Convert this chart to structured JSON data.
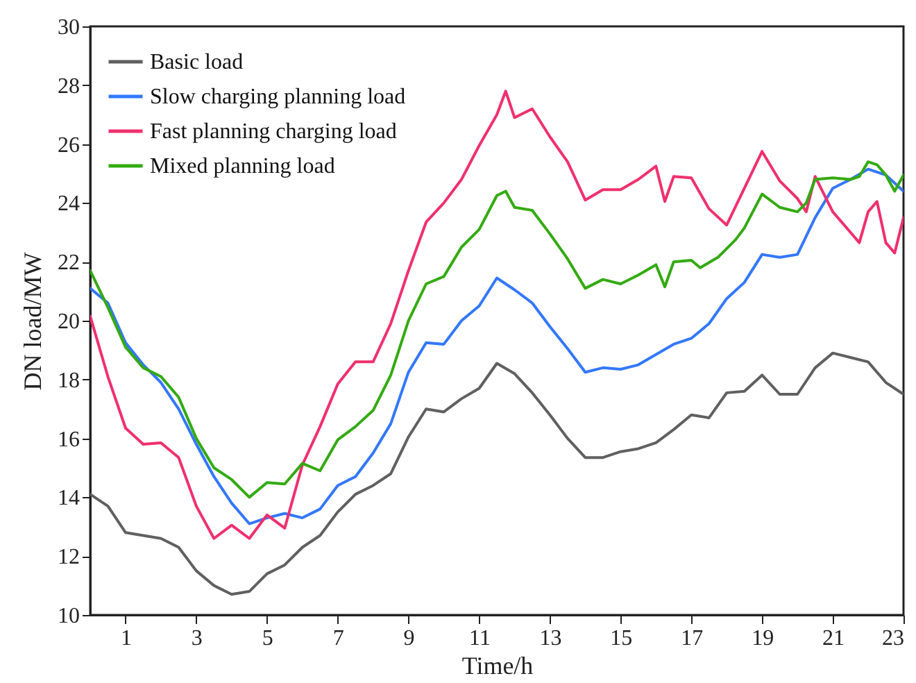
{
  "chart_data": {
    "type": "line",
    "xlabel": "Time/h",
    "ylabel": "DN load/MW",
    "xlim": [
      0,
      23
    ],
    "xticks": [
      1,
      3,
      5,
      7,
      9,
      11,
      13,
      15,
      17,
      19,
      21,
      23
    ],
    "ylim": [
      10,
      30
    ],
    "yticks": [
      10,
      12,
      14,
      16,
      18,
      20,
      22,
      24,
      26,
      28,
      30
    ],
    "grid": false,
    "legend": "top left",
    "marker": "none",
    "line_style": "solid",
    "series": [
      {
        "name": "Basic load",
        "color": "#606060",
        "x": [
          0,
          0.5,
          1,
          1.5,
          2,
          2.5,
          3,
          3.5,
          4,
          4.5,
          5,
          5.5,
          6,
          6.5,
          7,
          7.5,
          8,
          8.5,
          9,
          9.5,
          10,
          10.5,
          11,
          11.5,
          12,
          12.5,
          13,
          13.5,
          14,
          14.5,
          15,
          15.5,
          16,
          16.5,
          17,
          17.5,
          18,
          18.5,
          19,
          19.5,
          20,
          20.5,
          21,
          21.5,
          22,
          22.5,
          23
        ],
        "values": [
          14.1,
          13.7,
          12.8,
          12.7,
          12.6,
          12.3,
          11.5,
          11.0,
          10.7,
          10.8,
          11.4,
          11.7,
          12.3,
          12.7,
          13.5,
          14.1,
          14.4,
          14.8,
          16.05,
          17.0,
          16.9,
          17.35,
          17.7,
          18.55,
          18.2,
          17.55,
          16.8,
          16.0,
          15.35,
          15.35,
          15.55,
          15.65,
          15.85,
          16.3,
          16.8,
          16.7,
          17.55,
          17.6,
          18.15,
          17.5,
          17.5,
          18.4,
          18.9,
          18.75,
          18.6,
          17.9,
          17.5
        ]
      },
      {
        "name": "Slow charging planning load",
        "color": "#3377ff",
        "x": [
          0,
          0.5,
          1,
          1.5,
          2,
          2.5,
          3,
          3.5,
          4,
          4.5,
          5,
          5.5,
          6,
          6.5,
          7,
          7.5,
          8,
          8.5,
          9,
          9.5,
          10,
          10.5,
          11,
          11.5,
          12,
          12.5,
          13,
          13.5,
          14,
          14.5,
          15,
          15.5,
          16,
          16.5,
          17,
          17.5,
          18,
          18.5,
          19,
          19.5,
          20,
          20.5,
          21,
          21.5,
          22,
          22.5,
          23
        ],
        "values": [
          21.1,
          20.6,
          19.25,
          18.5,
          17.9,
          17.0,
          15.8,
          14.7,
          13.8,
          13.1,
          13.3,
          13.45,
          13.3,
          13.6,
          14.4,
          14.7,
          15.5,
          16.5,
          18.25,
          19.25,
          19.2,
          20.0,
          20.5,
          21.45,
          21.05,
          20.6,
          19.8,
          19.05,
          18.25,
          18.4,
          18.35,
          18.5,
          18.85,
          19.2,
          19.4,
          19.9,
          20.75,
          21.3,
          22.25,
          22.15,
          22.25,
          23.5,
          24.5,
          24.8,
          25.15,
          24.95,
          24.4
        ]
      },
      {
        "name": "Fast planning charging load",
        "color": "#f0306e",
        "x": [
          0,
          0.5,
          1,
          1.5,
          2,
          2.5,
          3,
          3.5,
          4,
          4.5,
          5,
          5.5,
          6,
          6.5,
          7,
          7.5,
          8,
          8.5,
          9,
          9.5,
          10,
          10.5,
          11,
          11.5,
          11.75,
          12,
          12.5,
          13,
          13.5,
          14,
          14.5,
          15,
          15.5,
          16,
          16.25,
          16.5,
          17,
          17.5,
          18,
          18.5,
          19,
          19.5,
          20,
          20.25,
          20.5,
          21,
          21.5,
          21.75,
          22,
          22.25,
          22.5,
          22.75,
          23
        ],
        "values": [
          20.15,
          18.1,
          16.35,
          15.8,
          15.85,
          15.35,
          13.7,
          12.6,
          13.05,
          12.6,
          13.4,
          12.95,
          15.1,
          16.4,
          17.85,
          18.6,
          18.6,
          19.9,
          21.7,
          23.35,
          24.0,
          24.8,
          25.95,
          27.0,
          27.8,
          26.9,
          27.2,
          26.25,
          25.4,
          24.1,
          24.45,
          24.45,
          24.8,
          25.25,
          24.05,
          24.9,
          24.85,
          23.8,
          23.25,
          24.5,
          25.75,
          24.75,
          24.15,
          23.7,
          24.9,
          23.7,
          23.0,
          22.65,
          23.7,
          24.05,
          22.65,
          22.3,
          23.5
        ]
      },
      {
        "name": "Mixed planning load",
        "color": "#33aa11",
        "x": [
          0,
          0.5,
          1,
          1.5,
          2,
          2.5,
          3,
          3.5,
          4,
          4.5,
          5,
          5.5,
          6,
          6.5,
          7,
          7.5,
          8,
          8.5,
          9,
          9.5,
          10,
          10.5,
          11,
          11.5,
          11.75,
          12,
          12.5,
          13,
          13.5,
          14,
          14.5,
          15,
          15.5,
          16,
          16.25,
          16.5,
          17,
          17.25,
          17.75,
          18.25,
          18.5,
          19,
          19.5,
          20,
          20.25,
          20.5,
          21,
          21.5,
          21.75,
          22,
          22.25,
          22.5,
          22.75,
          23
        ],
        "values": [
          21.7,
          20.45,
          19.1,
          18.4,
          18.1,
          17.4,
          16.0,
          15.0,
          14.6,
          14.0,
          14.5,
          14.45,
          15.15,
          14.9,
          15.95,
          16.4,
          16.95,
          18.15,
          20.0,
          21.25,
          21.5,
          22.5,
          23.1,
          24.25,
          24.4,
          23.85,
          23.75,
          22.95,
          22.1,
          21.1,
          21.4,
          21.25,
          21.55,
          21.9,
          21.15,
          22.0,
          22.05,
          21.8,
          22.15,
          22.75,
          23.15,
          24.3,
          23.85,
          23.7,
          24.0,
          24.8,
          24.85,
          24.8,
          24.9,
          25.4,
          25.3,
          24.95,
          24.4,
          24.95
        ]
      }
    ]
  }
}
